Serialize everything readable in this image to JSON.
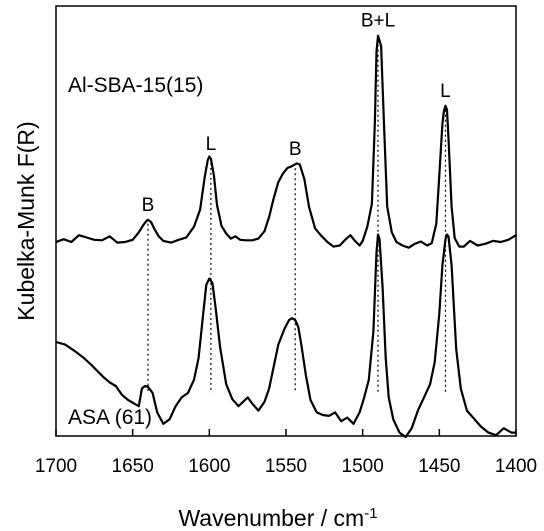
{
  "chart_data": {
    "type": "line",
    "xlabel": "Wavenumber / cm",
    "xlabel_sup": "-1",
    "ylabel": "Kubelka-Munk F(R)",
    "xlim": [
      1700,
      1400
    ],
    "x_reversed": true,
    "xticks": [
      "1700",
      "1650",
      "1600",
      "1550",
      "1500",
      "1450",
      "1400"
    ],
    "xtick_values": [
      1700,
      1650,
      1600,
      1550,
      1500,
      1450,
      1400
    ],
    "ylim": [
      0,
      4.3
    ],
    "y_tick_labels": false,
    "grid": false,
    "series": [
      {
        "name": "Al-SBA-15(15)",
        "x": [
          1700,
          1695,
          1690,
          1685,
          1680,
          1675,
          1670,
          1665,
          1660,
          1655,
          1650,
          1646,
          1643,
          1641,
          1640,
          1638,
          1636,
          1633,
          1630,
          1625,
          1620,
          1615,
          1610,
          1606,
          1603,
          1601,
          1600,
          1599,
          1597,
          1595,
          1592,
          1589,
          1586,
          1583,
          1580,
          1576,
          1572,
          1568,
          1564,
          1561,
          1558,
          1555,
          1552,
          1549,
          1547,
          1545,
          1543,
          1541,
          1538,
          1535,
          1531,
          1527,
          1523,
          1519,
          1515,
          1511,
          1508,
          1505,
          1502,
          1500,
          1497,
          1494,
          1492,
          1491,
          1490,
          1488,
          1486,
          1484,
          1481,
          1478,
          1474,
          1470,
          1466,
          1462,
          1458,
          1455,
          1452,
          1450,
          1448,
          1447,
          1446,
          1445,
          1444,
          1442,
          1440,
          1437,
          1434,
          1430,
          1425,
          1420,
          1415,
          1410,
          1405,
          1400
        ],
        "values": [
          0.28,
          0.33,
          0.28,
          0.4,
          0.36,
          0.32,
          0.31,
          0.38,
          0.27,
          0.28,
          0.32,
          0.45,
          0.58,
          0.65,
          0.67,
          0.63,
          0.52,
          0.38,
          0.3,
          0.27,
          0.32,
          0.36,
          0.55,
          0.85,
          1.42,
          1.72,
          1.78,
          1.74,
          1.45,
          0.93,
          0.56,
          0.43,
          0.34,
          0.38,
          0.32,
          0.31,
          0.31,
          0.34,
          0.47,
          0.72,
          1.05,
          1.33,
          1.48,
          1.58,
          1.6,
          1.63,
          1.66,
          1.64,
          1.38,
          0.9,
          0.52,
          0.39,
          0.28,
          0.2,
          0.22,
          0.33,
          0.4,
          0.3,
          0.22,
          0.3,
          0.55,
          0.95,
          2.4,
          3.62,
          3.9,
          3.72,
          2.3,
          0.9,
          0.45,
          0.28,
          0.22,
          0.18,
          0.25,
          0.29,
          0.22,
          0.26,
          0.6,
          1.45,
          2.35,
          2.58,
          2.67,
          2.6,
          2.1,
          0.9,
          0.35,
          0.2,
          0.2,
          0.3,
          0.22,
          0.25,
          0.3,
          0.28,
          0.32,
          0.4
        ]
      },
      {
        "name": "ASA (61)",
        "x": [
          1700,
          1694,
          1688,
          1682,
          1677,
          1673,
          1669,
          1665,
          1661,
          1657,
          1653,
          1649,
          1646,
          1644,
          1642,
          1640,
          1637,
          1634,
          1630,
          1626,
          1622,
          1618,
          1614,
          1610,
          1607,
          1604,
          1602,
          1600,
          1598,
          1596,
          1593,
          1589,
          1585,
          1581,
          1578,
          1575,
          1572,
          1568,
          1564,
          1561,
          1558,
          1555,
          1551,
          1548,
          1546,
          1544,
          1542,
          1540,
          1537,
          1534,
          1530,
          1526,
          1522,
          1518,
          1514,
          1510,
          1506,
          1502,
          1499,
          1496,
          1493,
          1491,
          1490,
          1489,
          1487,
          1485,
          1483,
          1480,
          1476,
          1472,
          1468,
          1464,
          1460,
          1456,
          1453,
          1450,
          1448,
          1446,
          1445,
          1444,
          1442,
          1439,
          1436,
          1432,
          1428,
          1423,
          1418,
          1413,
          1408,
          1403,
          1400
        ],
        "values": [
          1.08,
          1.05,
          0.98,
          0.9,
          0.82,
          0.75,
          0.68,
          0.62,
          0.58,
          0.48,
          0.42,
          0.38,
          0.35,
          0.55,
          0.58,
          0.57,
          0.5,
          0.28,
          0.15,
          0.2,
          0.35,
          0.45,
          0.5,
          0.65,
          0.9,
          1.4,
          1.73,
          1.8,
          1.75,
          1.48,
          1.02,
          0.6,
          0.43,
          0.35,
          0.4,
          0.45,
          0.38,
          0.3,
          0.4,
          0.55,
          0.8,
          1.05,
          1.23,
          1.33,
          1.35,
          1.33,
          1.25,
          1.05,
          0.7,
          0.42,
          0.28,
          0.25,
          0.24,
          0.28,
          0.18,
          0.22,
          0.15,
          0.28,
          0.45,
          0.65,
          1.2,
          2.1,
          2.3,
          2.25,
          1.7,
          0.9,
          0.45,
          0.2,
          0.05,
          0.0,
          0.1,
          0.3,
          0.45,
          0.6,
          0.85,
          1.4,
          1.95,
          2.25,
          2.3,
          2.28,
          1.95,
          1.0,
          0.55,
          0.3,
          0.22,
          0.12,
          0.05,
          0.02,
          0.1,
          0.05,
          0.05
        ]
      }
    ],
    "annotations": [
      {
        "text": "B",
        "x": 1640
      },
      {
        "text": "L",
        "x": 1599
      },
      {
        "text": "B",
        "x": 1544
      },
      {
        "text": "B+L",
        "x": 1490
      },
      {
        "text": "L",
        "x": 1446
      }
    ],
    "guide_lines": [
      1640,
      1599,
      1544,
      1490,
      1446
    ]
  }
}
